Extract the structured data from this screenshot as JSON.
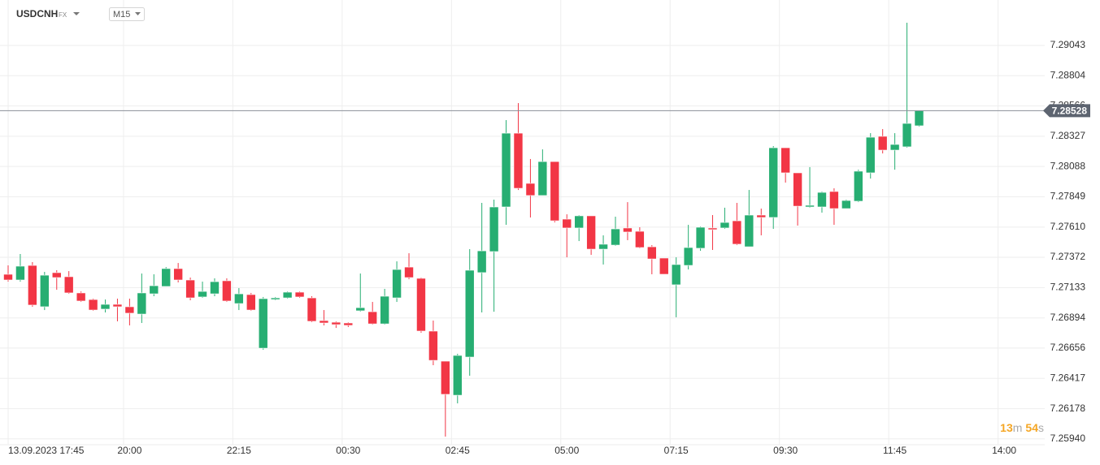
{
  "header": {
    "symbol": "USDCNH",
    "market": "FX",
    "interval": "M15"
  },
  "chart_data": {
    "type": "candlestick",
    "categories": [
      null,
      "13.09.2023 17:45",
      null,
      null,
      null,
      null,
      null,
      null,
      null,
      null,
      "20:00",
      null,
      null,
      null,
      null,
      null,
      null,
      null,
      null,
      "22:15",
      null,
      null,
      null,
      null,
      null,
      null,
      null,
      null,
      "00:30",
      null,
      null,
      null,
      null,
      null,
      null,
      null,
      null,
      "02:45",
      null,
      null,
      null,
      null,
      null,
      null,
      null,
      null,
      "05:00",
      null,
      null,
      null,
      null,
      null,
      null,
      null,
      null,
      "07:15",
      null,
      null,
      null,
      null,
      null,
      null,
      null,
      null,
      "09:30",
      null,
      null,
      null,
      null,
      null,
      null,
      null,
      null,
      "11:45",
      null,
      null,
      null,
      null,
      null,
      null,
      null,
      null,
      "14:00"
    ],
    "open": [
      7.27238,
      7.27193,
      7.27308,
      7.26982,
      7.27251,
      7.27219,
      7.27091,
      7.27039,
      7.26963,
      7.27001,
      7.26982,
      7.26924,
      7.27084,
      7.27142,
      7.27283,
      7.27193,
      7.27059,
      7.27084,
      7.27187,
      7.27007,
      7.27078,
      7.26655,
      7.27039,
      7.27052,
      7.27097,
      7.27052,
      7.26873,
      7.2686,
      7.26854,
      7.2695,
      7.26943,
      7.26847,
      7.27052,
      7.27295,
      7.27206,
      7.2679,
      7.26553,
      7.26284,
      7.26585,
      7.27251,
      7.27417,
      7.27769,
      7.28351,
      7.27955,
      7.27859,
      7.28127,
      7.27673,
      7.27603,
      7.27699,
      7.27436,
      7.27468,
      7.27603,
      7.27577,
      7.27455,
      7.27366,
      7.27155,
      7.27308,
      7.27443,
      7.27603,
      7.27603,
      7.2766,
      7.27455,
      7.27705,
      7.27686,
      7.28236,
      7.28038,
      7.27769,
      7.27769,
      7.27891,
      7.27756,
      7.27814,
      7.28038,
      7.28326,
      7.28217,
      7.28243,
      7.28409,
      null,
      null,
      null,
      null,
      null,
      null,
      null
    ],
    "high": [
      7.27308,
      7.27398,
      7.27334,
      7.27257,
      7.2727,
      7.27263,
      7.27103,
      7.27046,
      7.27039,
      7.27046,
      7.27046,
      7.27244,
      7.27238,
      7.27295,
      7.27327,
      7.27212,
      7.2718,
      7.27206,
      7.27206,
      7.27129,
      7.27091,
      7.27059,
      7.27059,
      7.27103,
      7.27103,
      7.27065,
      7.26956,
      7.26867,
      7.2686,
      7.27244,
      7.2702,
      7.27123,
      7.2734,
      7.27404,
      7.27212,
      7.26873,
      7.26553,
      7.26611,
      7.27436,
      7.27801,
      7.27827,
      7.28454,
      7.28588,
      7.28147,
      7.28223,
      7.28127,
      7.27711,
      7.27705,
      7.27699,
      7.27545,
      7.27692,
      7.27807,
      7.27609,
      7.27468,
      7.27366,
      7.27372,
      7.27628,
      7.27615,
      7.27705,
      7.27763,
      7.27801,
      7.27903,
      7.27756,
      7.28249,
      7.28236,
      7.28038,
      7.28083,
      7.27891,
      7.27916,
      7.27827,
      7.28063,
      7.28351,
      7.28383,
      7.28351,
      7.29222,
      7.28528,
      null,
      null,
      null,
      null,
      null,
      null,
      null
    ],
    "low": [
      7.2718,
      7.2718,
      7.26982,
      7.26956,
      7.27116,
      7.27084,
      7.2702,
      7.2695,
      7.26937,
      7.26867,
      7.26835,
      7.26854,
      7.27065,
      7.27142,
      7.27174,
      7.27033,
      7.27052,
      7.27065,
      7.2702,
      7.26956,
      7.2695,
      7.26643,
      7.27033,
      7.27046,
      7.27052,
      7.2686,
      7.26835,
      7.26815,
      7.26822,
      7.26943,
      7.26841,
      7.26841,
      7.2702,
      7.27199,
      7.26777,
      7.26521,
      7.25958,
      7.2622,
      7.26438,
      7.26937,
      7.26943,
      7.27628,
      7.27903,
      7.27686,
      7.27859,
      7.27647,
      7.27372,
      7.275,
      7.27391,
      7.27315,
      7.27462,
      7.27507,
      7.27443,
      7.27238,
      7.27238,
      7.26899,
      7.27276,
      7.27423,
      7.2743,
      7.27596,
      7.27468,
      7.27455,
      7.27545,
      7.27596,
      7.27961,
      7.27622,
      7.27763,
      7.27724,
      7.27628,
      7.27756,
      7.27807,
      7.27993,
      7.28191,
      7.28063,
      7.28236,
      7.28403,
      null,
      null,
      null,
      null,
      null,
      null,
      null
    ],
    "close": [
      7.27193,
      7.27302,
      7.26995,
      7.27231,
      7.27212,
      7.27091,
      7.27027,
      7.26956,
      7.27001,
      7.26982,
      7.26931,
      7.27091,
      7.27148,
      7.27283,
      7.27193,
      7.27052,
      7.27103,
      7.2718,
      7.27027,
      7.27084,
      7.26956,
      7.27046,
      7.27052,
      7.27097,
      7.27059,
      7.26867,
      7.26854,
      7.26841,
      7.26835,
      7.26975,
      7.26847,
      7.27065,
      7.27276,
      7.27212,
      7.2679,
      7.26559,
      7.26291,
      7.26598,
      7.2727,
      7.27423,
      7.27769,
      7.28351,
      7.27916,
      7.27859,
      7.28127,
      7.2766,
      7.27603,
      7.27699,
      7.27436,
      7.27475,
      7.27596,
      7.27571,
      7.27449,
      7.27359,
      7.27238,
      7.27315,
      7.27449,
      7.27609,
      7.2759,
      7.27647,
      7.27475,
      7.27705,
      7.27686,
      7.28236,
      7.28038,
      7.27775,
      7.27782,
      7.27884,
      7.27756,
      7.2782,
      7.28051,
      7.28319,
      7.28217,
      7.28262,
      7.28428,
      7.28528,
      null,
      null,
      null,
      null,
      null,
      null,
      null
    ],
    "up_color": "#27ae72",
    "down_color": "#f23645",
    "ylim": [
      7.25894,
      7.29401
    ],
    "yticks": [
      7.29043,
      7.28804,
      7.28566,
      7.28327,
      7.28088,
      7.27849,
      7.2761,
      7.27372,
      7.27133,
      7.26894,
      7.26656,
      7.26417,
      7.26178,
      7.2594
    ],
    "yticks_labels": [
      "7.29043",
      "7.28804",
      "7.28566",
      "7.28327",
      "7.28088",
      "7.27849",
      "7.27610",
      "7.27372",
      "7.27133",
      "7.26894",
      "7.26656",
      "7.26417",
      "7.26178",
      "7.25940"
    ],
    "last_price": {
      "value": 7.28528,
      "label": "7.28528"
    },
    "grid": true,
    "countdown": [
      "13",
      "m",
      "54",
      "s"
    ]
  }
}
